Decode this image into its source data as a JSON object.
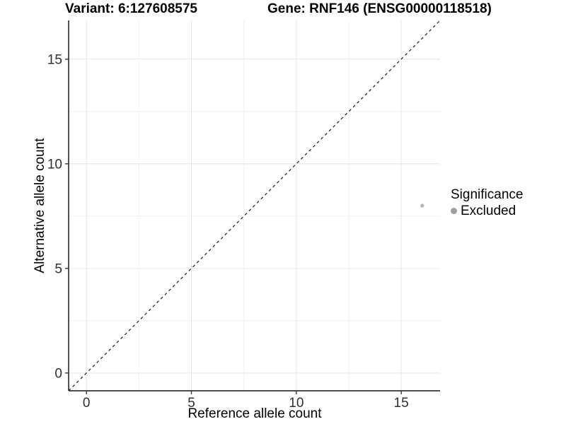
{
  "header": {
    "variant": "Variant: 6:127608575",
    "gene": "Gene: RNF146 (ENSG00000118518)"
  },
  "legend": {
    "title": "Significance",
    "items": [
      {
        "label": "Excluded",
        "marker": "circle-icon",
        "color": "#9e9e9e"
      }
    ]
  },
  "chart_data": {
    "type": "scatter",
    "title": "Variant: 6:127608575   Gene: RNF146 (ENSG00000118518)",
    "xlabel": "Reference allele count",
    "ylabel": "Alternative allele count",
    "xlim": [
      -0.85,
      16.85
    ],
    "ylim": [
      -0.85,
      16.85
    ],
    "x_ticks": [
      0,
      5,
      10,
      15
    ],
    "y_ticks": [
      0,
      5,
      10,
      15
    ],
    "x_minor_ticks": [
      2.5,
      7.5,
      12.5
    ],
    "y_minor_ticks": [
      2.5,
      7.5,
      12.5
    ],
    "grid": "major+minor",
    "legend_position": "right",
    "reference_line": {
      "type": "identity y=x, corner to corner",
      "style": "dashed",
      "color": "#1a1a1a"
    },
    "series": [
      {
        "name": "Excluded",
        "color": "#b4b4b4",
        "marker": "circle",
        "size": 2.6,
        "points": [
          {
            "x": 16,
            "y": 8
          }
        ]
      }
    ],
    "colors": {
      "background": "#ffffff",
      "grid_major": "#e6e6e6",
      "grid_minor": "#f2f2f2",
      "axis": "#333333",
      "tick_label": "#303030"
    }
  }
}
